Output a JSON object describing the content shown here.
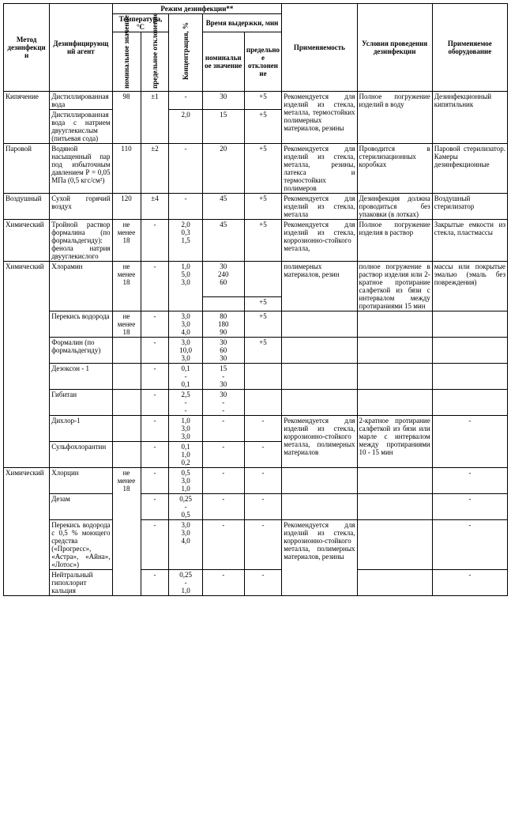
{
  "headers": {
    "method": "Метод дезинфекции",
    "agent": "Дезинфицирующий агент",
    "regime": "Режим дезинфекции**",
    "temp": "Температура, °С",
    "conc": "Концентрация, %",
    "time": "Время выдержки, мин",
    "nominal": "номинальное значение",
    "deviation": "предельное отклонение",
    "applicability": "Применяемость",
    "conditions": "Условия проведения дезинфекции",
    "equipment": "Применяемое оборудование"
  },
  "r1_method": "Кипячение",
  "r1_agent1": "Дистиллированная вода",
  "r1_agent2": "Дистиллированная вода с натрием двууглекислым (питьевая сода)",
  "r1_temp": "98",
  "r1_dev": "±1",
  "r1_conc1": "-",
  "r1_conc2": "2,0",
  "r1_time1": "30",
  "r1_time2": "15",
  "r1_tdev1": "+5",
  "r1_tdev2": "+5",
  "r1_app": "Рекомендуется для изделий из стекла, металла, термостойких полимерных материалов, резины",
  "r1_cond": "Полное погружение изделий в воду",
  "r1_equip": "Дезинфекционный кипятильник",
  "r2_method": "Паровой",
  "r2_agent": "Водяной насыщенный пар под избыточным давлением Р = 0,05 МПа (0,5 кгс/см²)",
  "r2_temp": "110",
  "r2_dev": "±2",
  "r2_conc": "-",
  "r2_time": "20",
  "r2_tdev": "+5",
  "r2_app": "Рекомендуется для изделий из стекла, металла, резины, латекса и термостойких полимеров",
  "r2_cond": "Проводится в стерилизационных коробках",
  "r2_equip": "Паровой стерилизатор. Камеры дезинфекционные",
  "r3_method": "Воздушный",
  "r3_agent": "Сухой горячий воздух",
  "r3_temp": "120",
  "r3_dev": "±4",
  "r3_conc": "-",
  "r3_time": "45",
  "r3_tdev": "+5",
  "r3_app": "Рекомендуется для изделий из стекла, металла",
  "r3_cond": "Дезинфекция должна проводиться без упаковки (в лотках)",
  "r3_equip": "Воздушный стерилизатор",
  "r4_method": "Химический",
  "r4_agent": "Тройной раствор формалина (по формальдегиду): фенола натрия двууглекислого",
  "r4_temp": "не менее 18",
  "r4_dev": "-",
  "r4_conc": "2,0\n0,3\n1,5",
  "r4_time": "45",
  "r4_tdev": "+5",
  "r4_app": "Рекомендуется для изделий из стекла, коррозионно-стойкого металла,",
  "r4_cond": "Полное погружение изделия в раствор",
  "r4_equip": "Закрытые емкости из стекла, пластмассы",
  "r5_method": "Химический",
  "r5_agent": "Хлорамин",
  "r5_temp": "не менее 18",
  "r5_dev": "-",
  "r5_conc": "1,0\n5,0\n3,0",
  "r5_time": "30\n240\n60",
  "r5_tdev": "+5",
  "r5_app": "полимерных материалов, резин",
  "r5_cond": "полное погружение в раствор изделия или 2-кратное протирание салфеткой из бязи с интервалом между протираниями 15 мин",
  "r5_equip": "массы или покрытые эмалью (эмаль без повреждения)",
  "r5b_agent": "Перекись водорода",
  "r5b_temp": "не менее 18",
  "r5b_dev": "-",
  "r5b_conc": "3,0\n3,0\n4,0",
  "r5b_time": "80\n180\n90",
  "r5b_tdev": "+5",
  "r5c_agent": "Формалин (по формальдегиду)",
  "r5c_dev": "-",
  "r5c_conc": "3,0\n10,0\n3,0",
  "r5c_time": "30\n60\n30",
  "r5c_tdev": "+5",
  "r5d_agent": "Дезоксон - 1",
  "r5d_dev": "-",
  "r5d_conc": "0,1\n-\n0,1",
  "r5d_time": "15\n-\n30",
  "r5e_agent": "Гибитан",
  "r5e_dev": "-",
  "r5e_conc": "2,5\n-\n-",
  "r5e_time": "30\n-\n-",
  "r5f_agent": "Дихлор-1",
  "r5f_dev": "-",
  "r5f_conc": "1,0\n3,0\n3,0",
  "r5f_time": "-",
  "r5f_tdev": "-",
  "r5f_app": "Рекомендуется для изделий из стекла, коррозионно-стойкого металла, полимерных материалов",
  "r5f_cond": "2-кратное протирание салфеткой из бязи или марле с интервалом между протираниями 10 - 15 мин",
  "r5f_equip": "-",
  "r5g_agent": "Сульфохлорантин",
  "r5g_dev": "-",
  "r5g_conc": "0,1\n1,0\n0,2",
  "r5g_time": "-",
  "r5g_tdev": "-",
  "r6_method": "Химический",
  "r6a_agent": "Хлорцин",
  "r6a_temp": "не менее 18",
  "r6a_dev": "-",
  "r6a_conc": "0,5\n3,0\n1,0",
  "dash": "-",
  "r6b_agent": "Дезам",
  "r6b_conc": "0,25\n-\n0,5",
  "r6c_agent": "Перекись водорода с 0,5 % моющего средства («Прогресс», «Астра», «Айна», «Лотос»)",
  "r6c_conc": "3,0\n3,0\n4,0",
  "r6c_app": "Рекомендуется для изделий из стекла, коррозионно-стойкого металла, полимерных материалов, резины",
  "r6d_agent": "Нейтральный гипохлорит кальция",
  "r6d_conc": "0,25\n-\n1,0"
}
